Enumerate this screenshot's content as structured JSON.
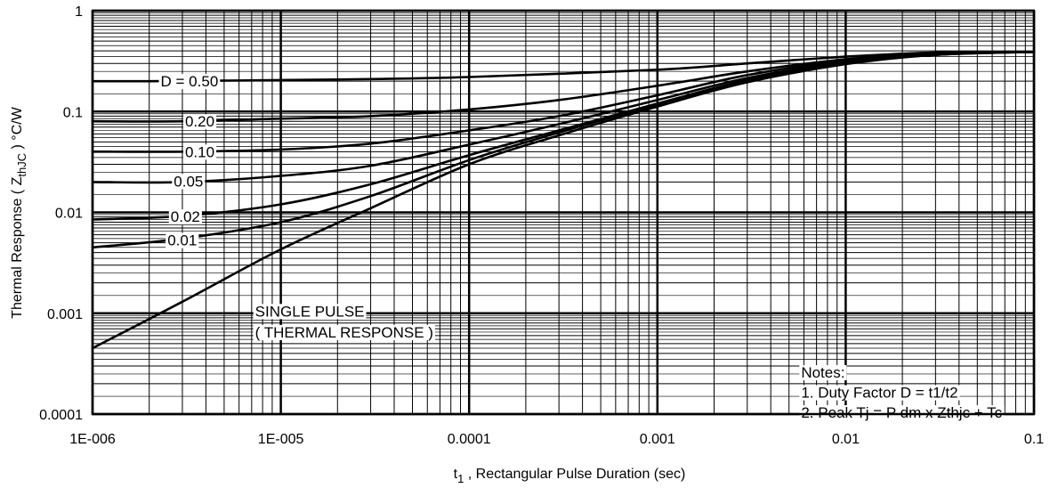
{
  "chart_data": {
    "type": "line",
    "x_scale": "log",
    "y_scale": "log",
    "xlim": [
      1e-06,
      0.1
    ],
    "ylim": [
      0.0001,
      1
    ],
    "grid": true,
    "xlabel": {
      "prefix": "t",
      "sub": "1",
      "rest": " , Rectangular Pulse Duration (sec)"
    },
    "ylabel": {
      "prefix": "Thermal Response ( Z",
      "sub": "thJC",
      "rest": " ) °C/W"
    },
    "x_ticks": [
      {
        "value": 1e-06,
        "label": "1E-006"
      },
      {
        "value": 1e-05,
        "label": "1E-005"
      },
      {
        "value": 0.0001,
        "label": "0.0001"
      },
      {
        "value": 0.001,
        "label": "0.001"
      },
      {
        "value": 0.01,
        "label": "0.01"
      },
      {
        "value": 0.1,
        "label": "0.1"
      }
    ],
    "y_ticks": [
      {
        "value": 1,
        "label": "1"
      },
      {
        "value": 0.1,
        "label": "0.1"
      },
      {
        "value": 0.01,
        "label": "0.01"
      },
      {
        "value": 0.001,
        "label": "0.001"
      },
      {
        "value": 0.0001,
        "label": "0.0001"
      }
    ],
    "series": [
      {
        "name": "D = 0.50",
        "points": [
          [
            1e-06,
            0.2
          ],
          [
            2e-06,
            0.2
          ],
          [
            1e-05,
            0.205
          ],
          [
            3e-05,
            0.21
          ],
          [
            0.0001,
            0.22
          ],
          [
            0.001,
            0.26
          ],
          [
            0.003,
            0.3
          ],
          [
            0.01,
            0.35
          ],
          [
            0.03,
            0.385
          ],
          [
            0.1,
            0.39
          ]
        ]
      },
      {
        "name": "0.20",
        "points": [
          [
            1e-06,
            0.08
          ],
          [
            3e-06,
            0.08
          ],
          [
            1e-05,
            0.085
          ],
          [
            3e-05,
            0.09
          ],
          [
            0.0001,
            0.105
          ],
          [
            0.0003,
            0.13
          ],
          [
            0.001,
            0.18
          ],
          [
            0.003,
            0.25
          ],
          [
            0.01,
            0.33
          ],
          [
            0.03,
            0.38
          ],
          [
            0.1,
            0.39
          ]
        ]
      },
      {
        "name": "0.10",
        "points": [
          [
            1e-06,
            0.04
          ],
          [
            3e-06,
            0.04
          ],
          [
            1e-05,
            0.042
          ],
          [
            3e-05,
            0.048
          ],
          [
            0.0001,
            0.065
          ],
          [
            0.0003,
            0.09
          ],
          [
            0.001,
            0.145
          ],
          [
            0.003,
            0.23
          ],
          [
            0.01,
            0.32
          ],
          [
            0.03,
            0.375
          ],
          [
            0.1,
            0.39
          ]
        ]
      },
      {
        "name": "0.05",
        "points": [
          [
            1e-06,
            0.02
          ],
          [
            3e-06,
            0.02
          ],
          [
            1e-05,
            0.023
          ],
          [
            3e-05,
            0.029
          ],
          [
            0.0001,
            0.047
          ],
          [
            0.0003,
            0.075
          ],
          [
            0.001,
            0.13
          ],
          [
            0.003,
            0.215
          ],
          [
            0.01,
            0.31
          ],
          [
            0.03,
            0.37
          ],
          [
            0.1,
            0.39
          ]
        ]
      },
      {
        "name": "0.02",
        "points": [
          [
            1e-06,
            0.0085
          ],
          [
            3e-06,
            0.0092
          ],
          [
            1e-05,
            0.012
          ],
          [
            3e-05,
            0.019
          ],
          [
            0.0001,
            0.037
          ],
          [
            0.0003,
            0.065
          ],
          [
            0.001,
            0.12
          ],
          [
            0.003,
            0.205
          ],
          [
            0.01,
            0.305
          ],
          [
            0.03,
            0.37
          ],
          [
            0.1,
            0.39
          ]
        ]
      },
      {
        "name": "0.01",
        "points": [
          [
            1e-06,
            0.0045
          ],
          [
            3e-06,
            0.0055
          ],
          [
            1e-05,
            0.008
          ],
          [
            3e-05,
            0.0145
          ],
          [
            0.0001,
            0.033
          ],
          [
            0.0003,
            0.062
          ],
          [
            0.001,
            0.117
          ],
          [
            0.003,
            0.2
          ],
          [
            0.01,
            0.3
          ],
          [
            0.03,
            0.365
          ],
          [
            0.1,
            0.39
          ]
        ]
      },
      {
        "name": "SINGLE PULSE ( THERMAL RESPONSE )",
        "points": [
          [
            1e-06,
            0.00045
          ],
          [
            3e-06,
            0.0013
          ],
          [
            1e-05,
            0.0043
          ],
          [
            3e-05,
            0.011
          ],
          [
            0.0001,
            0.03
          ],
          [
            0.0003,
            0.058
          ],
          [
            0.001,
            0.112
          ],
          [
            0.003,
            0.195
          ],
          [
            0.01,
            0.295
          ],
          [
            0.03,
            0.365
          ],
          [
            0.1,
            0.39
          ]
        ]
      }
    ],
    "curve_labels": [
      {
        "text": "D = 0.50",
        "x": 2.3e-06,
        "y": 0.2
      },
      {
        "text": "0.20",
        "x": 3.1e-06,
        "y": 0.08
      },
      {
        "text": "0.10",
        "x": 3.1e-06,
        "y": 0.04
      },
      {
        "text": "0.05",
        "x": 2.7e-06,
        "y": 0.0204
      },
      {
        "text": "0.02",
        "x": 2.6e-06,
        "y": 0.0091
      },
      {
        "text": "0.01",
        "x": 2.5e-06,
        "y": 0.0053
      },
      {
        "text": "SINGLE PULSE",
        "x": 7.3e-06,
        "y": 0.00105
      },
      {
        "text": "( THERMAL RESPONSE )",
        "x": 7.3e-06,
        "y": 0.00065
      }
    ],
    "notes": {
      "title": "Notes:",
      "lines": [
        "1. Duty Factor D = t1/t2",
        "2. Peak Tj = P dm x Zthjc + Tc"
      ],
      "x": 0.0058,
      "y": 0.00023
    }
  }
}
